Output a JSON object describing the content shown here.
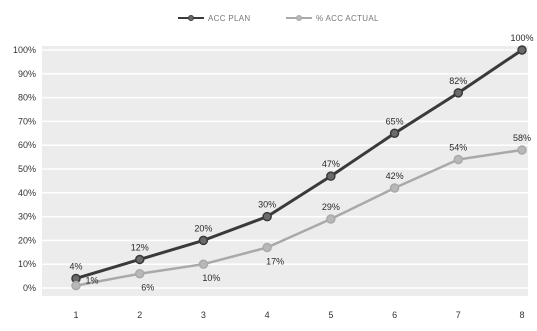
{
  "chart_data": {
    "type": "line",
    "x": [
      1,
      2,
      3,
      4,
      5,
      6,
      7,
      8
    ],
    "y_ticks": [
      "0%",
      "10%",
      "20%",
      "30%",
      "40%",
      "50%",
      "60%",
      "70%",
      "80%",
      "90%",
      "100%"
    ],
    "ylim": [
      0,
      100
    ],
    "grid": true,
    "legend_position": "top-center",
    "series": [
      {
        "name": "ACC PLAN",
        "color": "#3a3a3a",
        "marker_fill": "#6b6b6b",
        "values": [
          4,
          12,
          20,
          30,
          47,
          65,
          82,
          100
        ],
        "labels": [
          "4%",
          "12%",
          "20%",
          "30%",
          "47%",
          "65%",
          "82%",
          "100%"
        ]
      },
      {
        "name": "% ACC ACTUAL",
        "color": "#a9a9a9",
        "marker_fill": "#b8b8b8",
        "values": [
          1,
          6,
          10,
          17,
          29,
          42,
          54,
          58
        ],
        "labels": [
          "1%",
          "6%",
          "10%",
          "17%",
          "29%",
          "42%",
          "54%",
          "58%"
        ]
      }
    ]
  }
}
